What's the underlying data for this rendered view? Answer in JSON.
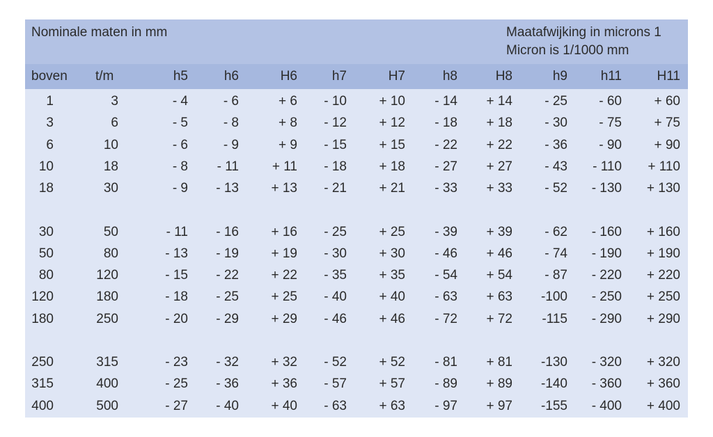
{
  "header": {
    "left": "Nominale maten in mm",
    "right_lines": [
      "Maatafwijking in microns 1",
      "Micron is 1/1000 mm"
    ]
  },
  "table": {
    "columns": [
      "boven",
      "t/m",
      "h5",
      "h6",
      "H6",
      "h7",
      "H7",
      "h8",
      "H8",
      "h9",
      "h11",
      "H11"
    ],
    "groups": [
      [
        [
          "1",
          "3",
          "- 4",
          "- 6",
          "+ 6",
          "- 10",
          "+ 10",
          "- 14",
          "+ 14",
          "- 25",
          "- 60",
          "+ 60"
        ],
        [
          "3",
          "6",
          "- 5",
          "- 8",
          "+ 8",
          "- 12",
          "+ 12",
          "- 18",
          "+ 18",
          "- 30",
          "- 75",
          "+ 75"
        ],
        [
          "6",
          "10",
          "- 6",
          "- 9",
          "+ 9",
          "- 15",
          "+ 15",
          "- 22",
          "+ 22",
          "- 36",
          "- 90",
          "+ 90"
        ],
        [
          "10",
          "18",
          "- 8",
          "- 11",
          "+ 11",
          "- 18",
          "+ 18",
          "- 27",
          "+ 27",
          "- 43",
          "- 110",
          "+ 110"
        ],
        [
          "18",
          "30",
          "- 9",
          "- 13",
          "+ 13",
          "- 21",
          "+ 21",
          "- 33",
          "+ 33",
          "- 52",
          "- 130",
          "+ 130"
        ]
      ],
      [
        [
          "30",
          "50",
          "- 11",
          "- 16",
          "+ 16",
          "- 25",
          "+ 25",
          "- 39",
          "+ 39",
          "- 62",
          "- 160",
          "+ 160"
        ],
        [
          "50",
          "80",
          "- 13",
          "- 19",
          "+ 19",
          "- 30",
          "+ 30",
          "- 46",
          "+ 46",
          "- 74",
          "- 190",
          "+ 190"
        ],
        [
          "80",
          "120",
          "- 15",
          "- 22",
          "+ 22",
          "- 35",
          "+ 35",
          "- 54",
          "+ 54",
          "- 87",
          "- 220",
          "+ 220"
        ],
        [
          "120",
          "180",
          "- 18",
          "- 25",
          "+ 25",
          "- 40",
          "+ 40",
          "- 63",
          "+ 63",
          "-100",
          "- 250",
          "+ 250"
        ],
        [
          "180",
          "250",
          "- 20",
          "- 29",
          "+ 29",
          "- 46",
          "+ 46",
          "- 72",
          "+ 72",
          "-115",
          "- 290",
          "+ 290"
        ]
      ],
      [
        [
          "250",
          "315",
          "- 23",
          "- 32",
          "+ 32",
          "- 52",
          "+ 52",
          "- 81",
          "+ 81",
          "-130",
          "- 320",
          "+ 320"
        ],
        [
          "315",
          "400",
          "- 25",
          "- 36",
          "+ 36",
          "- 57",
          "+ 57",
          "- 89",
          "+ 89",
          "-140",
          "- 360",
          "+ 360"
        ],
        [
          "400",
          "500",
          "- 27",
          "- 40",
          "+ 40",
          "- 63",
          "+ 63",
          "- 97",
          "+ 97",
          "-155",
          "- 400",
          "+ 400"
        ]
      ]
    ]
  }
}
